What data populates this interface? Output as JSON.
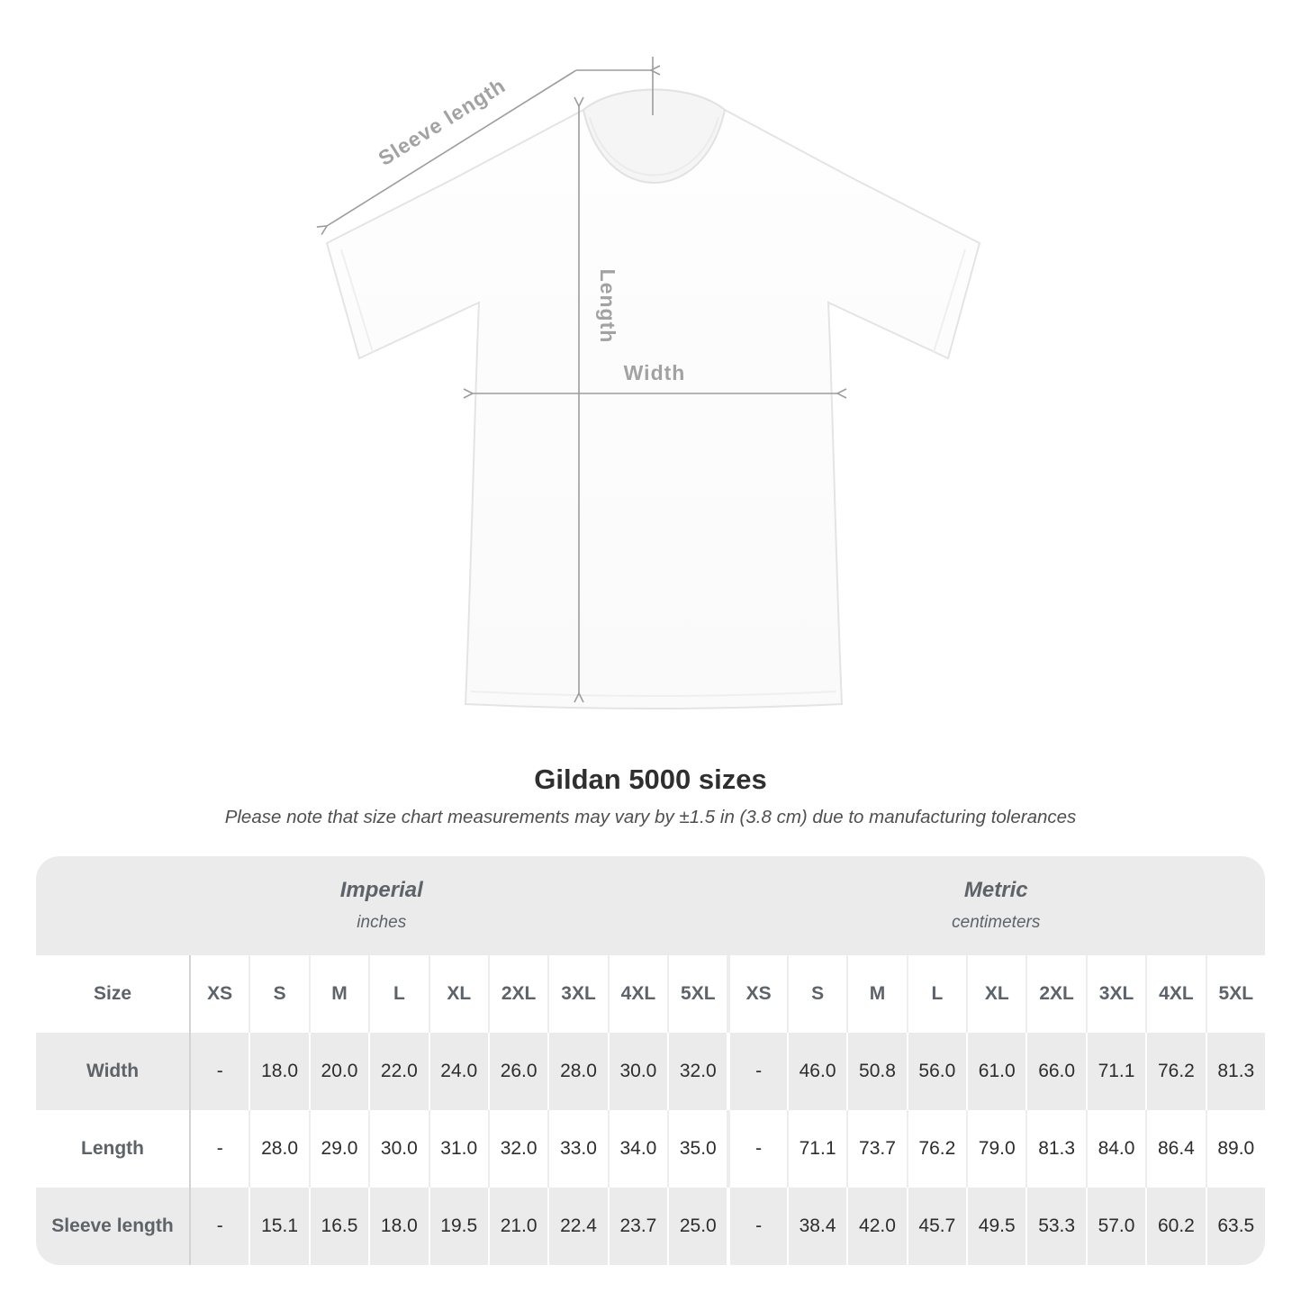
{
  "diagram": {
    "sleeve_length_label": "Sleeve length",
    "length_label": "Length",
    "width_label": "Width"
  },
  "title": "Gildan 5000 sizes",
  "subtitle": "Please note that size chart measurements may vary by ±1.5 in (3.8 cm) due to manufacturing tolerances",
  "chart_data": {
    "type": "table",
    "title": "Gildan 5000 sizes",
    "note": "Please note that size chart measurements may vary by ±1.5 in (3.8 cm) due to manufacturing tolerances",
    "unit_groups": [
      {
        "label": "Imperial",
        "sublabel": "inches"
      },
      {
        "label": "Metric",
        "sublabel": "centimeters"
      }
    ],
    "size_col_header": "Size",
    "sizes": [
      "XS",
      "S",
      "M",
      "L",
      "XL",
      "2XL",
      "3XL",
      "4XL",
      "5XL"
    ],
    "rows": [
      {
        "label": "Width",
        "imperial": [
          "-",
          "18.0",
          "20.0",
          "22.0",
          "24.0",
          "26.0",
          "28.0",
          "30.0",
          "32.0"
        ],
        "metric": [
          "-",
          "46.0",
          "50.8",
          "56.0",
          "61.0",
          "66.0",
          "71.1",
          "76.2",
          "81.3"
        ]
      },
      {
        "label": "Length",
        "imperial": [
          "-",
          "28.0",
          "29.0",
          "30.0",
          "31.0",
          "32.0",
          "33.0",
          "34.0",
          "35.0"
        ],
        "metric": [
          "-",
          "71.1",
          "73.7",
          "76.2",
          "79.0",
          "81.3",
          "84.0",
          "86.4",
          "89.0"
        ]
      },
      {
        "label": "Sleeve length",
        "imperial": [
          "-",
          "15.1",
          "16.5",
          "18.0",
          "19.5",
          "21.0",
          "22.4",
          "23.7",
          "25.0"
        ],
        "metric": [
          "-",
          "38.4",
          "42.0",
          "45.7",
          "49.5",
          "53.3",
          "57.0",
          "60.2",
          "63.5"
        ]
      }
    ]
  },
  "colors": {
    "table_band": "#ebebeb",
    "row_alt": "#ebebeb",
    "header_text": "#5d6369",
    "value_text": "#2d2d2d",
    "dimension_gray": "#9c9c9c",
    "title_text": "#2f2f2f"
  }
}
